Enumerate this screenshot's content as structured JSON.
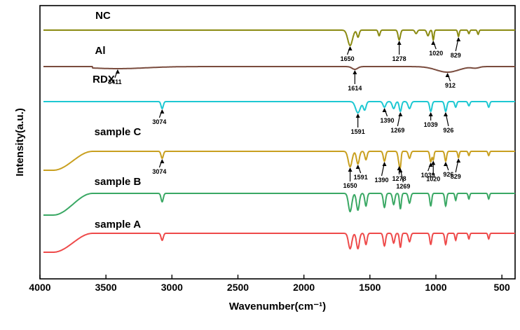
{
  "chart_data": {
    "type": "line",
    "xlabel": "Wavenumber(cm⁻¹)",
    "ylabel": "Intensity(a.u.)",
    "xlim": [
      4000,
      400
    ],
    "x_reversed": true,
    "x_ticks": [
      4000,
      3500,
      3000,
      2500,
      2000,
      1500,
      1000,
      500
    ],
    "grid": false,
    "legend": "none",
    "series": [
      {
        "name": "NC",
        "color": "#8b8b12",
        "baseline": 43,
        "edge": 3,
        "top": 43,
        "features": [
          {
            "center": 1900,
            "depth": 0,
            "width": 100
          },
          {
            "center": 1650,
            "depth": 22,
            "width": 25
          },
          {
            "center": 1590,
            "depth": 10,
            "width": 12
          },
          {
            "center": 1430,
            "depth": 8,
            "width": 10
          },
          {
            "center": 1278,
            "depth": 14,
            "width": 12
          },
          {
            "center": 1150,
            "depth": 5,
            "width": 12
          },
          {
            "center": 1060,
            "depth": 8,
            "width": 12
          },
          {
            "center": 1020,
            "depth": 14,
            "width": 8
          },
          {
            "center": 829,
            "depth": 9,
            "width": 8
          },
          {
            "center": 750,
            "depth": 5,
            "width": 8
          },
          {
            "center": 680,
            "depth": 6,
            "width": 8
          }
        ],
        "annotations": [
          {
            "label": "1650",
            "x": 1650
          },
          {
            "label": "1278",
            "x": 1278
          },
          {
            "label": "1020",
            "x": 1020
          },
          {
            "label": "829",
            "x": 829
          }
        ]
      },
      {
        "name": "Al",
        "color": "#7a4c3e",
        "baseline": 95,
        "edge": 3,
        "top": 95,
        "features": [
          {
            "center": 3411,
            "depth": 3,
            "width": 300
          },
          {
            "center": 1614,
            "depth": 4,
            "width": 30
          },
          {
            "center": 912,
            "depth": 8,
            "width": 120
          },
          {
            "center": 700,
            "depth": 2,
            "width": 40
          }
        ],
        "annotations": [
          {
            "label": "3411",
            "x": 3411
          },
          {
            "label": "1614",
            "x": 1614
          },
          {
            "label": "912",
            "x": 912
          }
        ]
      },
      {
        "name": "RDX",
        "color": "#1ec8d2",
        "baseline": 145,
        "edge": 3,
        "top": 145,
        "features": [
          {
            "center": 3074,
            "depth": 10,
            "width": 12
          },
          {
            "center": 1591,
            "depth": 16,
            "width": 25
          },
          {
            "center": 1540,
            "depth": 12,
            "width": 15
          },
          {
            "center": 1390,
            "depth": 8,
            "width": 15
          },
          {
            "center": 1320,
            "depth": 10,
            "width": 15
          },
          {
            "center": 1269,
            "depth": 14,
            "width": 12
          },
          {
            "center": 1200,
            "depth": 10,
            "width": 15
          },
          {
            "center": 1039,
            "depth": 14,
            "width": 12
          },
          {
            "center": 926,
            "depth": 14,
            "width": 12
          },
          {
            "center": 850,
            "depth": 8,
            "width": 10
          },
          {
            "center": 750,
            "depth": 6,
            "width": 10
          },
          {
            "center": 600,
            "depth": 8,
            "width": 10
          }
        ],
        "annotations": [
          {
            "label": "3074",
            "x": 3074
          },
          {
            "label": "1591",
            "x": 1591
          },
          {
            "label": "1390",
            "x": 1390
          },
          {
            "label": "1269",
            "x": 1269
          },
          {
            "label": "1039",
            "x": 1039
          },
          {
            "label": "926",
            "x": 926
          }
        ]
      },
      {
        "name": "sample C",
        "color": "#c9a020",
        "baseline": 216,
        "edge": 22,
        "top": 216,
        "features": [
          {
            "center": 3074,
            "depth": 10,
            "width": 12
          },
          {
            "center": 1650,
            "depth": 22,
            "width": 20
          },
          {
            "center": 1591,
            "depth": 18,
            "width": 15
          },
          {
            "center": 1530,
            "depth": 12,
            "width": 12
          },
          {
            "center": 1390,
            "depth": 14,
            "width": 12
          },
          {
            "center": 1278,
            "depth": 16,
            "width": 12
          },
          {
            "center": 1269,
            "depth": 14,
            "width": 8
          },
          {
            "center": 1200,
            "depth": 10,
            "width": 12
          },
          {
            "center": 1039,
            "depth": 15,
            "width": 10
          },
          {
            "center": 1020,
            "depth": 12,
            "width": 8
          },
          {
            "center": 926,
            "depth": 14,
            "width": 10
          },
          {
            "center": 829,
            "depth": 9,
            "width": 8
          },
          {
            "center": 750,
            "depth": 6,
            "width": 8
          },
          {
            "center": 600,
            "depth": 6,
            "width": 8
          }
        ],
        "annotations": [
          {
            "label": "3074",
            "x": 3074
          },
          {
            "label": "1650",
            "x": 1650
          },
          {
            "label": "1591",
            "x": 1591
          },
          {
            "label": "1390",
            "x": 1390
          },
          {
            "label": "1278",
            "x": 1278
          },
          {
            "label": "1269",
            "x": 1269
          },
          {
            "label": "1039",
            "x": 1039
          },
          {
            "label": "1020",
            "x": 1020
          },
          {
            "label": "926",
            "x": 926
          },
          {
            "label": "829",
            "x": 829
          }
        ]
      },
      {
        "name": "sample B",
        "color": "#3aa864",
        "baseline": 276,
        "edge": 30,
        "top": 276,
        "features": [
          {
            "center": 3074,
            "depth": 12,
            "width": 12
          },
          {
            "center": 1650,
            "depth": 26,
            "width": 18
          },
          {
            "center": 1591,
            "depth": 24,
            "width": 15
          },
          {
            "center": 1530,
            "depth": 18,
            "width": 12
          },
          {
            "center": 1390,
            "depth": 20,
            "width": 12
          },
          {
            "center": 1320,
            "depth": 16,
            "width": 12
          },
          {
            "center": 1269,
            "depth": 22,
            "width": 10
          },
          {
            "center": 1200,
            "depth": 14,
            "width": 12
          },
          {
            "center": 1039,
            "depth": 18,
            "width": 10
          },
          {
            "center": 926,
            "depth": 18,
            "width": 10
          },
          {
            "center": 850,
            "depth": 10,
            "width": 8
          },
          {
            "center": 750,
            "depth": 8,
            "width": 8
          },
          {
            "center": 600,
            "depth": 8,
            "width": 8
          }
        ],
        "annotations": []
      },
      {
        "name": "sample A",
        "color": "#ee4a4a",
        "baseline": 333,
        "edge": 26,
        "top": 333,
        "features": [
          {
            "center": 3074,
            "depth": 10,
            "width": 12
          },
          {
            "center": 1650,
            "depth": 22,
            "width": 18
          },
          {
            "center": 1591,
            "depth": 22,
            "width": 15
          },
          {
            "center": 1530,
            "depth": 16,
            "width": 12
          },
          {
            "center": 1390,
            "depth": 18,
            "width": 12
          },
          {
            "center": 1320,
            "depth": 14,
            "width": 12
          },
          {
            "center": 1269,
            "depth": 20,
            "width": 10
          },
          {
            "center": 1200,
            "depth": 12,
            "width": 12
          },
          {
            "center": 1039,
            "depth": 16,
            "width": 10
          },
          {
            "center": 926,
            "depth": 16,
            "width": 10
          },
          {
            "center": 850,
            "depth": 10,
            "width": 8
          },
          {
            "center": 750,
            "depth": 8,
            "width": 8
          },
          {
            "center": 600,
            "depth": 8,
            "width": 8
          }
        ],
        "annotations": []
      }
    ]
  }
}
